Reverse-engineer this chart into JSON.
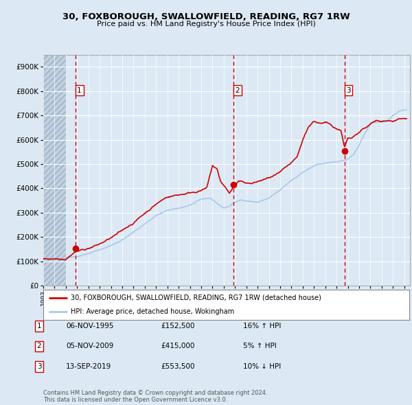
{
  "title": "30, FOXBOROUGH, SWALLOWFIELD, READING, RG7 1RW",
  "subtitle": "Price paid vs. HM Land Registry's House Price Index (HPI)",
  "legend_line1": "30, FOXBOROUGH, SWALLOWFIELD, READING, RG7 1RW (detached house)",
  "legend_line2": "HPI: Average price, detached house, Wokingham",
  "footer": "Contains HM Land Registry data © Crown copyright and database right 2024.\nThis data is licensed under the Open Government Licence v3.0.",
  "transactions": [
    {
      "num": 1,
      "date": "06-NOV-1995",
      "price": 152500,
      "rel": "16% ↑ HPI",
      "year": 1995.85
    },
    {
      "num": 2,
      "date": "05-NOV-2009",
      "price": 415000,
      "rel": "5% ↑ HPI",
      "year": 2009.85
    },
    {
      "num": 3,
      "date": "13-SEP-2019",
      "price": 553500,
      "rel": "10% ↓ HPI",
      "year": 2019.7
    }
  ],
  "hpi_color": "#a8c8e8",
  "price_color": "#cc0000",
  "dot_color": "#cc0000",
  "vline_color": "#cc0000",
  "bg_color": "#dce9f5",
  "plot_bg": "#dce9f5",
  "grid_color": "#ffffff",
  "ylim": [
    0,
    950000
  ],
  "yticks": [
    0,
    100000,
    200000,
    300000,
    400000,
    500000,
    600000,
    700000,
    800000,
    900000
  ],
  "xlim_start": 1993.0,
  "xlim_end": 2025.5
}
